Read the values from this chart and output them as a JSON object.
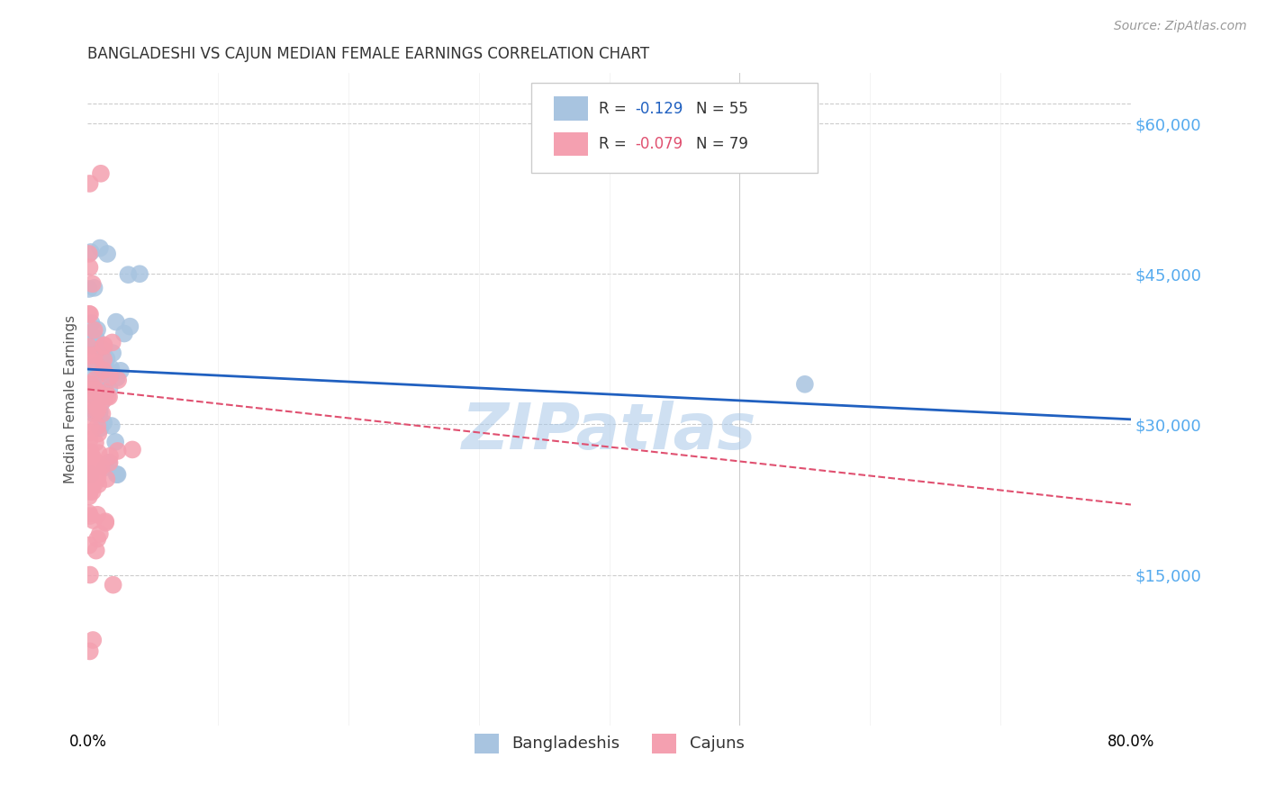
{
  "title": "BANGLADESHI VS CAJUN MEDIAN FEMALE EARNINGS CORRELATION CHART",
  "source": "Source: ZipAtlas.com",
  "ylabel": "Median Female Earnings",
  "y_ticks": [
    15000,
    30000,
    45000,
    60000
  ],
  "y_tick_labels": [
    "$15,000",
    "$30,000",
    "$45,000",
    "$60,000"
  ],
  "y_min": 0,
  "y_max": 65000,
  "x_min": 0.0,
  "x_max": 0.8,
  "bangladeshi_R": "-0.129",
  "bangladeshi_N": "55",
  "cajun_R": "-0.079",
  "cajun_N": "79",
  "bangladeshi_color": "#a8c4e0",
  "cajun_color": "#f4a0b0",
  "bangladeshi_line_color": "#2060c0",
  "cajun_line_color": "#e05070",
  "watermark": "ZIPatlas",
  "watermark_color": "#a8c8e8",
  "background_color": "#ffffff",
  "bang_line_x": [
    0.0,
    0.8
  ],
  "bang_line_y": [
    35500,
    30500
  ],
  "cajun_line_x": [
    0.0,
    0.8
  ],
  "cajun_line_y": [
    33500,
    22000
  ]
}
